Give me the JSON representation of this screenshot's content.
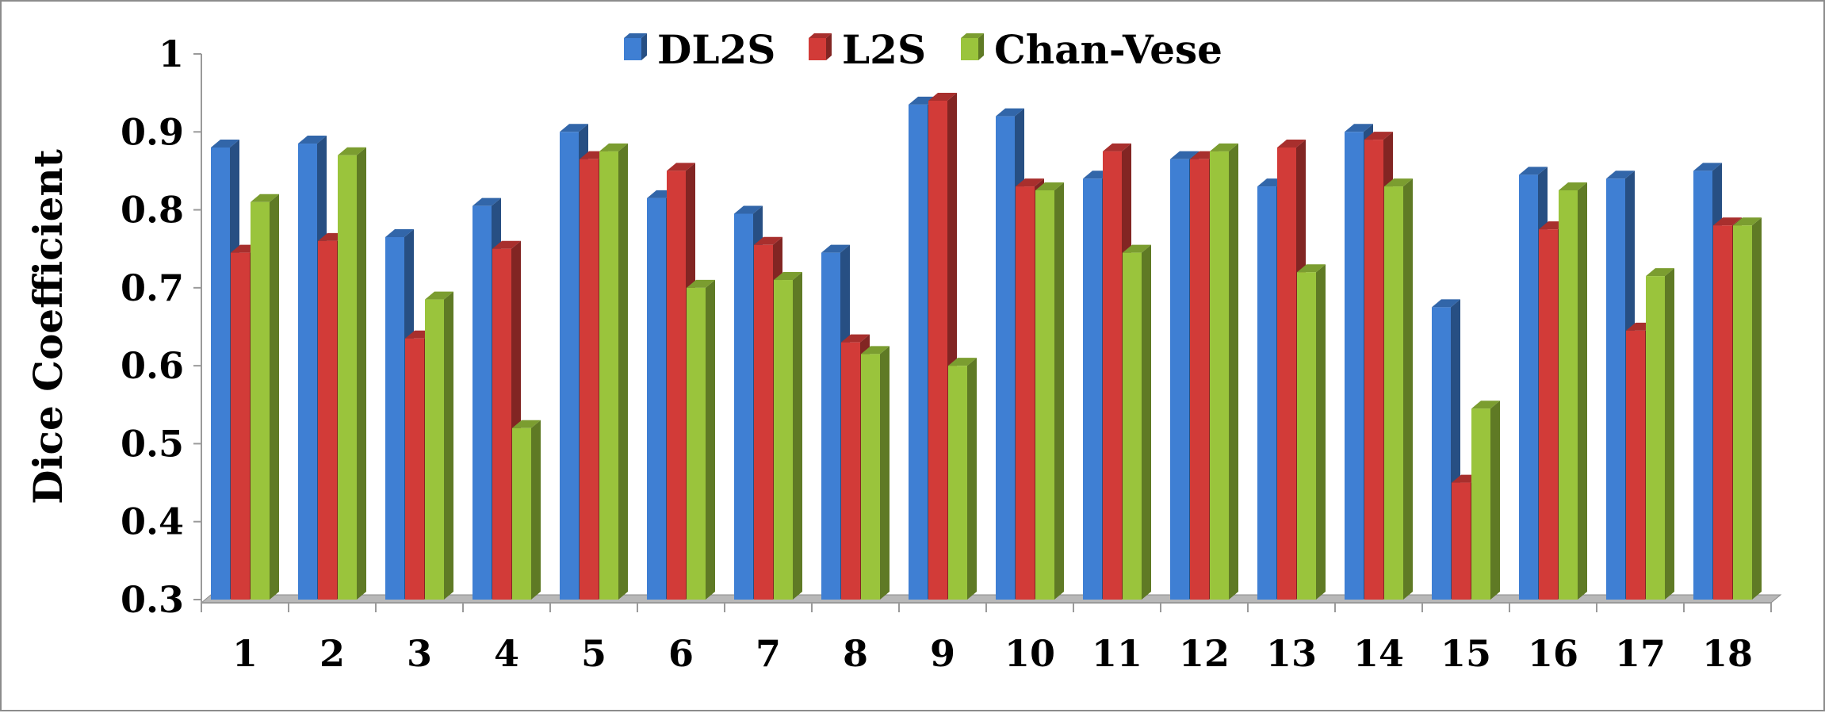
{
  "chart_data": {
    "type": "bar",
    "title": "",
    "xlabel": "",
    "ylabel": "Dice Coefficient",
    "ylim": [
      0.3,
      1
    ],
    "yticks": [
      0.3,
      0.4,
      0.5,
      0.6,
      0.7,
      0.8,
      0.9,
      1
    ],
    "ytick_labels": [
      "0.3",
      "0.4",
      "0.5",
      "0.6",
      "0.7",
      "0.8",
      "0.9",
      "1"
    ],
    "categories": [
      "1",
      "2",
      "3",
      "4",
      "5",
      "6",
      "7",
      "8",
      "9",
      "10",
      "11",
      "12",
      "13",
      "14",
      "15",
      "16",
      "17",
      "18"
    ],
    "legend_position": "top-center",
    "grid": false,
    "style": "3d-clustered-column",
    "series": [
      {
        "name": "DL2S",
        "color": "#3f7fd3",
        "values": [
          0.88,
          0.885,
          0.765,
          0.805,
          0.9,
          0.815,
          0.795,
          0.745,
          0.935,
          0.92,
          0.84,
          0.865,
          0.83,
          0.9,
          0.675,
          0.845,
          0.84,
          0.85
        ]
      },
      {
        "name": "L2S",
        "color": "#d23b38",
        "values": [
          0.745,
          0.76,
          0.635,
          0.75,
          0.865,
          0.85,
          0.755,
          0.63,
          0.94,
          0.83,
          0.875,
          0.865,
          0.88,
          0.89,
          0.45,
          0.775,
          0.645,
          0.78
        ]
      },
      {
        "name": "Chan-Vese",
        "color": "#9ac43c",
        "values": [
          0.81,
          0.87,
          0.685,
          0.52,
          0.875,
          0.7,
          0.71,
          0.615,
          0.6,
          0.825,
          0.745,
          0.875,
          0.72,
          0.83,
          0.545,
          0.825,
          0.715,
          0.78
        ]
      }
    ]
  }
}
